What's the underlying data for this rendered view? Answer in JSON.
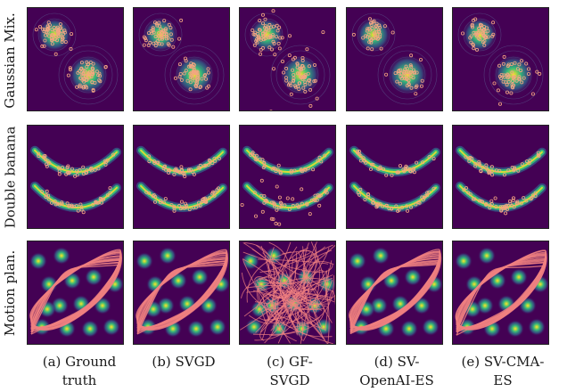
{
  "row_labels": {
    "gaussian_mix": "Gaussian Mix.",
    "double_banana": "Double banana",
    "motion_plan": "Motion plan."
  },
  "captions": [
    {
      "line1": "(a) Ground",
      "line2": "truth"
    },
    {
      "line1": "(b) SVGD",
      "line2": ""
    },
    {
      "line1": "(c) GF-",
      "line2": "SVGD"
    },
    {
      "line1": "(d) SV-",
      "line2": "OpenAI-ES"
    },
    {
      "line1": "(e) SV-CMA-",
      "line2": "ES"
    }
  ],
  "colors": {
    "background": "#440154",
    "density_core": "#fde725",
    "density_mid": "#35b779",
    "density_outer": "#31688e",
    "particles": "#f4a582",
    "trajectories": "#f08080"
  }
}
